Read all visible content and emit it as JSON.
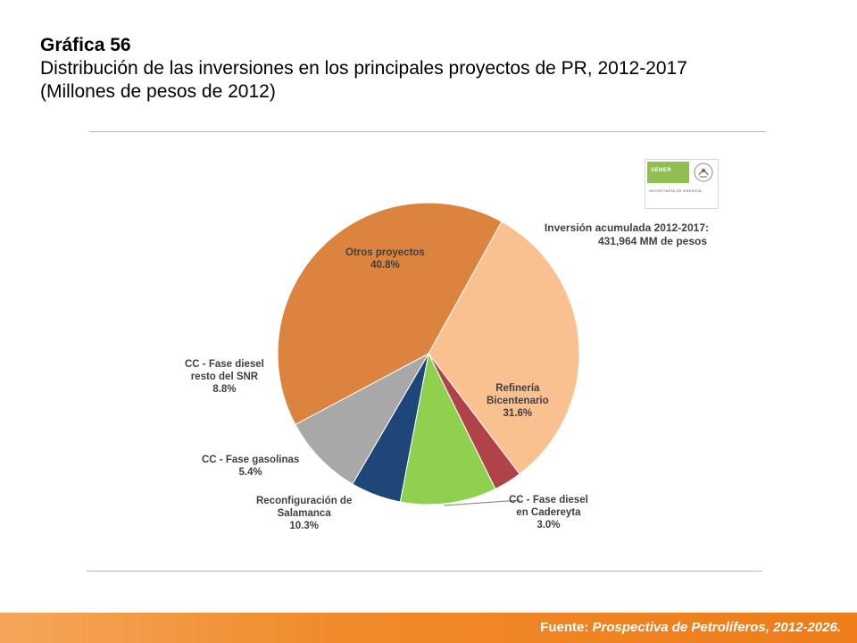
{
  "header": {
    "label": "Gráfica 56",
    "title": "Distribución de las inversiones en los principales proyectos de PR, 2012-2017",
    "unit": "(Millones de pesos de 2012)"
  },
  "logo": {
    "name": "SENER",
    "subtitle": "SECRETARÍA DE ENERGÍA"
  },
  "annotation": {
    "line1": "Inversión acumulada 2012-2017:",
    "line2": "431,964 MM de pesos"
  },
  "chart_data": {
    "type": "pie",
    "title": "",
    "slices": [
      {
        "name": "Refinería Bicentenario",
        "label_lines": [
          "Refinería",
          "Bicentenario"
        ],
        "value": 31.6,
        "value_label": "31.6%",
        "color": "#f9c090"
      },
      {
        "name": "CC - Fase diesel en Cadereyta",
        "label_lines": [
          "CC - Fase diesel",
          "en Cadereyta"
        ],
        "value": 3.0,
        "value_label": "3.0%",
        "color": "#b0434a"
      },
      {
        "name": "Reconfiguración de Salamanca",
        "label_lines": [
          "Reconfiguración de",
          "Salamanca"
        ],
        "value": 10.3,
        "value_label": "10.3%",
        "color": "#8fd14f"
      },
      {
        "name": "CC - Fase gasolinas",
        "label_lines": [
          "CC - Fase gasolinas"
        ],
        "value": 5.4,
        "value_label": "5.4%",
        "color": "#1f4678"
      },
      {
        "name": "CC - Fase diesel resto del SNR",
        "label_lines": [
          "CC - Fase diesel",
          "resto del SNR"
        ],
        "value": 8.8,
        "value_label": "8.8%",
        "color": "#a8a8a8"
      },
      {
        "name": "Otros proyectos",
        "label_lines": [
          "Otros proyectos"
        ],
        "value": 40.8,
        "value_label": "40.8%",
        "color": "#dc843f"
      }
    ]
  },
  "footer": {
    "prefix": "Fuente: ",
    "source": "Prospectiva de Petrolíferos, 2012-2026."
  }
}
